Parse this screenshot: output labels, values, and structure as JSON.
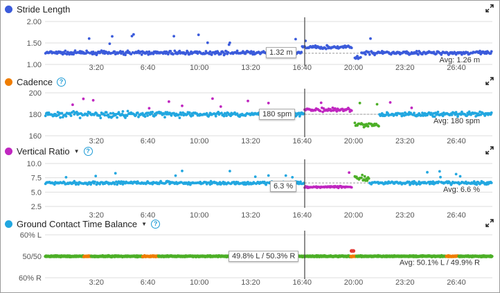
{
  "panels": [
    {
      "id": "stride",
      "title": "Stride Length",
      "dot_color": "#3b5bdb",
      "has_help": false,
      "has_dropdown": false,
      "y_ticks": [
        "2.00",
        "1.50",
        "1.00"
      ],
      "y_range": [
        1.0,
        2.0
      ],
      "avg_value": 1.26,
      "avg_label": "Avg: 1.26 m",
      "tooltip": "1.32 m",
      "series_colors": [
        "#3b5bdb"
      ]
    },
    {
      "id": "cadence",
      "title": "Cadence",
      "dot_color": "#ef7d00",
      "has_help": true,
      "has_dropdown": false,
      "y_ticks": [
        "200",
        "180",
        "160"
      ],
      "y_range": [
        160,
        200
      ],
      "avg_value": 180,
      "avg_label": "Avg: 180 spm",
      "tooltip": "180 spm",
      "series_colors": [
        "#22a7e0",
        "#c027c0",
        "#4caf27",
        "#ef7d00"
      ]
    },
    {
      "id": "vratio",
      "title": "Vertical Ratio",
      "dot_color": "#c027c0",
      "has_help": true,
      "has_dropdown": true,
      "y_ticks": [
        "10.0",
        "7.5",
        "5.0",
        "2.5"
      ],
      "y_range": [
        2.5,
        10.0
      ],
      "avg_value": 6.6,
      "avg_label": "Avg: 6.6 %",
      "tooltip": "6.3 %",
      "series_colors": [
        "#22a7e0",
        "#c027c0",
        "#4caf27",
        "#ef7d00"
      ]
    },
    {
      "id": "gct",
      "title": "Ground Contact Time Balance",
      "dot_color": "#22a7e0",
      "has_help": true,
      "has_dropdown": true,
      "y_ticks": [
        "60% L",
        "50/50",
        "60% R"
      ],
      "y_range": [
        -10,
        10
      ],
      "avg_value": 0.1,
      "avg_label": "Avg: 50.1% L / 49.9% R",
      "tooltip": "49.8% L / 50.3% R",
      "series_colors": [
        "#4caf27",
        "#ef7d00",
        "#e53935"
      ]
    }
  ],
  "x_ticks": [
    "3:20",
    "6:40",
    "10:00",
    "13:20",
    "16:40",
    "20:00",
    "23:20",
    "26:40"
  ],
  "x_tick_seconds": [
    200,
    400,
    600,
    800,
    1000,
    1200,
    1400,
    1600
  ],
  "x_range_seconds": [
    0,
    1740
  ],
  "cursor_seconds": 1010,
  "colors": {
    "grid": "#dddddd",
    "avg_line": "#999999",
    "cursor": "#444444",
    "help": "#1a9ad6"
  }
}
